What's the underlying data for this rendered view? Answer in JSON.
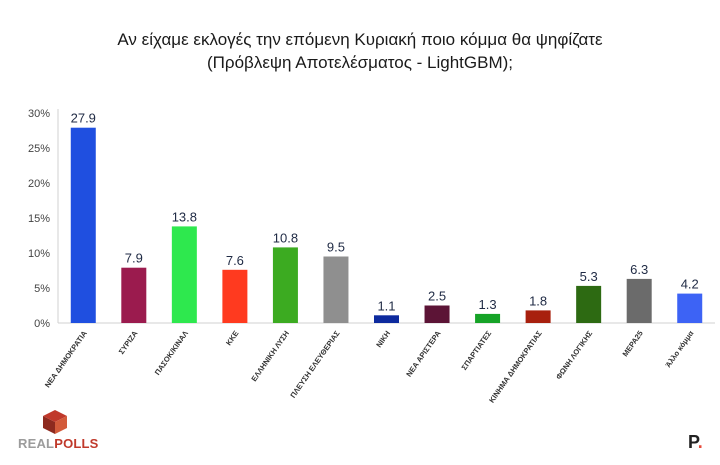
{
  "header": {
    "title_line1": "Αν είχαμε εκλογές την επόμενη Κυριακή ποιο κόμμα θα ψηφίζατε",
    "title_line2": "(Πρόβλεψη Αποτελέσματος - LightGBM);"
  },
  "logos": {
    "left_part1": "REAL",
    "left_part2": "POLLS",
    "right_letter": "P",
    "right_dot": "."
  },
  "chart_data": {
    "type": "bar",
    "title": "Αν είχαμε εκλογές την επόμενη Κυριακή ποιο κόμμα θα ψηφίζατε (Πρόβλεψη Αποτελέσματος - LightGBM);",
    "xlabel": "",
    "ylabel": "",
    "ylim": [
      0,
      30
    ],
    "yticks": [
      "0%",
      "5%",
      "10%",
      "15%",
      "20%",
      "25%",
      "30%"
    ],
    "grid": false,
    "legend": "none",
    "categories": [
      "ΝΕΑ ΔΗΜΟΚΡΑΤΙΑ",
      "ΣΥΡΙΖΑ",
      "ΠΑΣΟΚ/ΚΙΝΑΛ",
      "ΚΚΕ",
      "ΕΛΛΗΝΙΚΗ ΛΥΣΗ",
      "ΠΛΕΥΣΗ ΕΛΕΥΘΕΡΙΑΣ",
      "ΝΙΚΗ",
      "ΝΕΑ ΑΡΙΣΤΕΡΑ",
      "ΣΠΑΡΤΙΑΤΕΣ",
      "ΚΙΝΗΜΑ ΔΗΜΟΚΡΑΤΙΑΣ",
      "ΦΩΝΗ ΛΟΓΙΚΗΣ",
      "ΜΕΡΑ25",
      "Άλλο κόμμα"
    ],
    "values": [
      27.9,
      7.9,
      13.8,
      7.6,
      10.8,
      9.5,
      1.1,
      2.5,
      1.3,
      1.8,
      5.3,
      6.3,
      4.2
    ],
    "value_labels": [
      "27.9",
      "7.9",
      "13.8",
      "7.6",
      "10.8",
      "9.5",
      "1.1",
      "2.5",
      "1.3",
      "1.8",
      "5.3",
      "6.3",
      "4.2"
    ],
    "colors": [
      "#1f4fe0",
      "#9b1b4e",
      "#2ee84e",
      "#ff3a1f",
      "#3cab21",
      "#8f8f8f",
      "#0d2a9e",
      "#5c1436",
      "#16a327",
      "#a8200e",
      "#2d6a12",
      "#6b6b6b",
      "#3d63f5"
    ]
  }
}
